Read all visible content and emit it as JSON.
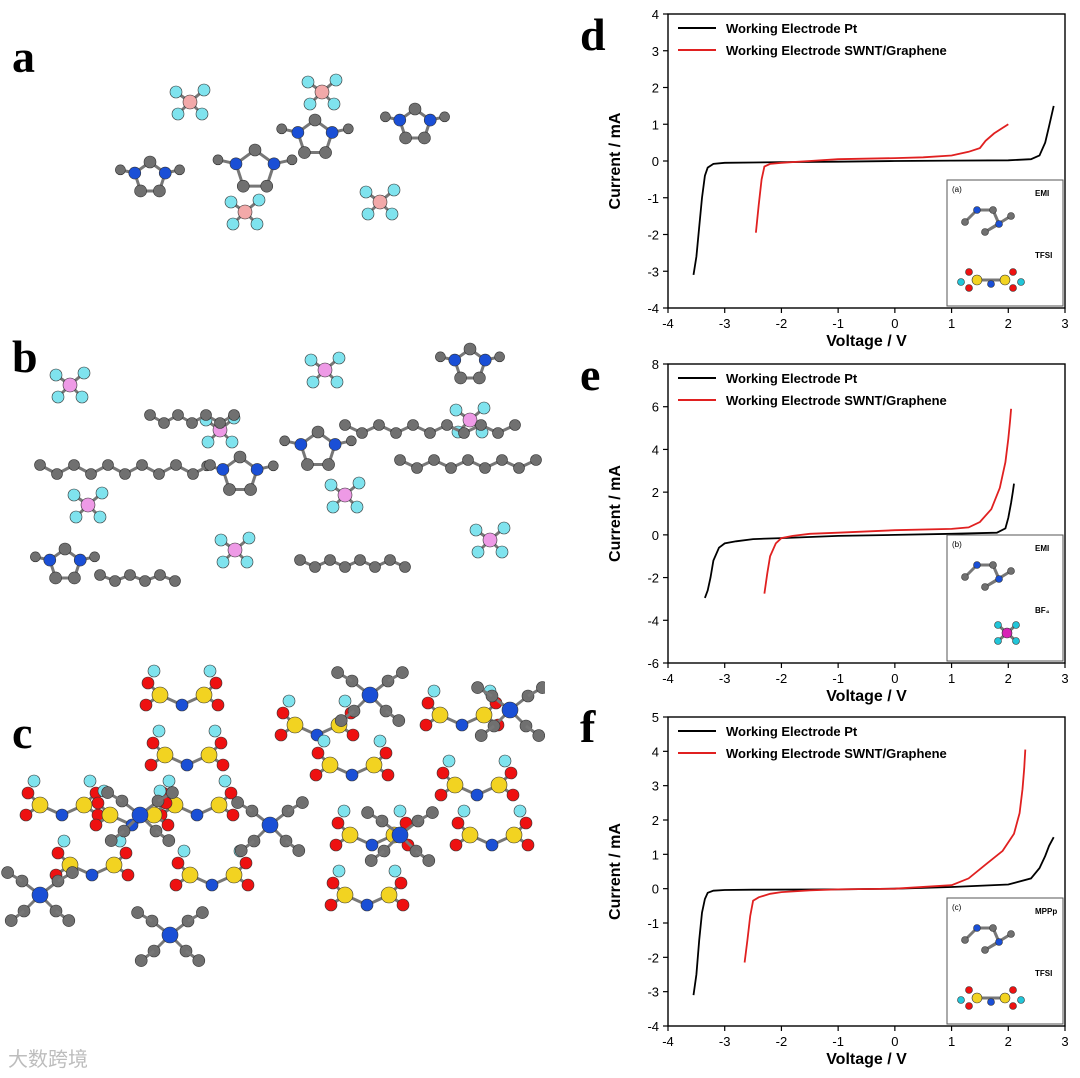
{
  "panels": {
    "a": "a",
    "b": "b",
    "c": "c",
    "d": "d",
    "e": "e",
    "f": "f"
  },
  "watermark": "大数跨境",
  "atom_colors": {
    "carbon": "#707070",
    "nitrogen": "#1a4fd6",
    "boron": "#f2a9a9",
    "phosphorus": "#ee9ae6",
    "fluorine": "#7fe3ee",
    "sulfur": "#f2d321",
    "oxygen": "#ee1111"
  },
  "series_colors": [
    "#000000",
    "#e02020"
  ],
  "chart_data": [
    {
      "type": "line",
      "xlabel": "Voltage / V",
      "ylabel": "Current / mA",
      "xlim": [
        -4,
        3
      ],
      "ylim": [
        -4,
        4
      ],
      "xticks": [
        "-4",
        "-3",
        "-2",
        "-1",
        "0",
        "1",
        "2",
        "3"
      ],
      "yticks": [
        "4",
        "3",
        "2",
        "1",
        "0",
        "-1",
        "-2",
        "-3",
        "-4"
      ],
      "legend_position": "top-left",
      "series": [
        {
          "name": "Working Electrode Pt",
          "x": [
            -3.55,
            -3.5,
            -3.45,
            -3.4,
            -3.35,
            -3.3,
            -3.2,
            -3.0,
            -2.5,
            -2.0,
            -1.0,
            0.0,
            1.0,
            2.0,
            2.4,
            2.55,
            2.65,
            2.72,
            2.8
          ],
          "y": [
            -3.1,
            -2.6,
            -1.8,
            -1.0,
            -0.4,
            -0.18,
            -0.08,
            -0.05,
            -0.04,
            -0.03,
            -0.02,
            0.0,
            0.01,
            0.02,
            0.05,
            0.15,
            0.5,
            0.95,
            1.5
          ]
        },
        {
          "name": "Working Electrode SWNT/Graphene",
          "x": [
            -2.45,
            -2.4,
            -2.35,
            -2.3,
            -2.2,
            -2.0,
            -1.5,
            -1.0,
            0.0,
            0.5,
            1.0,
            1.3,
            1.5,
            1.6,
            1.75,
            1.9,
            2.0
          ],
          "y": [
            -1.95,
            -1.2,
            -0.5,
            -0.15,
            -0.08,
            -0.05,
            0.0,
            0.05,
            0.08,
            0.1,
            0.15,
            0.25,
            0.35,
            0.55,
            0.75,
            0.9,
            1.0
          ]
        }
      ],
      "inset": {
        "labels": [
          "(a)",
          "EMI",
          "TFSI"
        ]
      }
    },
    {
      "type": "line",
      "xlabel": "Voltage / V",
      "ylabel": "Current / mA",
      "xlim": [
        -4,
        3
      ],
      "ylim": [
        -6,
        8
      ],
      "xticks": [
        "-4",
        "-3",
        "-2",
        "-1",
        "0",
        "1",
        "2",
        "3"
      ],
      "yticks": [
        "8",
        "6",
        "4",
        "2",
        "0",
        "-2",
        "-4",
        "-6"
      ],
      "legend_position": "top-left",
      "series": [
        {
          "name": "Working Electrode Pt",
          "x": [
            -3.35,
            -3.3,
            -3.25,
            -3.2,
            -3.1,
            -3.0,
            -2.8,
            -2.5,
            -2.0,
            -1.0,
            0.0,
            1.0,
            1.8,
            1.95,
            2.0,
            2.05,
            2.08,
            2.1
          ],
          "y": [
            -2.95,
            -2.6,
            -2.0,
            -1.2,
            -0.6,
            -0.4,
            -0.3,
            -0.2,
            -0.15,
            -0.05,
            0.0,
            0.05,
            0.1,
            0.3,
            0.8,
            1.5,
            2.0,
            2.4
          ]
        },
        {
          "name": "Working Electrode SWNT/Graphene",
          "x": [
            -2.3,
            -2.25,
            -2.2,
            -2.1,
            -2.0,
            -1.8,
            -1.5,
            -1.0,
            0.0,
            1.0,
            1.3,
            1.5,
            1.7,
            1.85,
            1.95,
            2.0,
            2.03,
            2.05
          ],
          "y": [
            -2.75,
            -1.8,
            -1.0,
            -0.4,
            -0.15,
            -0.05,
            0.05,
            0.1,
            0.22,
            0.28,
            0.35,
            0.6,
            1.2,
            2.2,
            3.4,
            4.5,
            5.3,
            5.9
          ]
        }
      ],
      "inset": {
        "labels": [
          "(b)",
          "EMI",
          "BF₄"
        ]
      }
    },
    {
      "type": "line",
      "xlabel": "Voltage / V",
      "ylabel": "Current / mA",
      "xlim": [
        -4,
        3
      ],
      "ylim": [
        -4,
        5
      ],
      "xticks": [
        "-4",
        "-3",
        "-2",
        "-1",
        "0",
        "1",
        "2",
        "3"
      ],
      "yticks": [
        "5",
        "4",
        "3",
        "2",
        "1",
        "0",
        "-1",
        "-2",
        "-3",
        "-4"
      ],
      "legend_position": "top-left",
      "series": [
        {
          "name": "Working Electrode Pt",
          "x": [
            -3.55,
            -3.5,
            -3.45,
            -3.4,
            -3.35,
            -3.3,
            -3.2,
            -3.0,
            -2.5,
            -1.0,
            0.0,
            1.0,
            2.0,
            2.4,
            2.55,
            2.65,
            2.72,
            2.8
          ],
          "y": [
            -3.1,
            -2.5,
            -1.5,
            -0.7,
            -0.3,
            -0.12,
            -0.06,
            -0.04,
            -0.03,
            -0.02,
            0.0,
            0.05,
            0.12,
            0.3,
            0.6,
            0.95,
            1.25,
            1.5
          ]
        },
        {
          "name": "Working Electrode SWNT/Graphene",
          "x": [
            -2.65,
            -2.6,
            -2.55,
            -2.5,
            -2.4,
            -2.2,
            -2.0,
            -1.5,
            -1.0,
            0.0,
            1.0,
            1.3,
            1.6,
            1.9,
            2.1,
            2.2,
            2.25,
            2.28,
            2.3
          ],
          "y": [
            -2.15,
            -1.5,
            -0.8,
            -0.35,
            -0.25,
            -0.15,
            -0.1,
            -0.05,
            -0.02,
            0.0,
            0.1,
            0.3,
            0.7,
            1.1,
            1.6,
            2.2,
            2.9,
            3.5,
            4.05
          ]
        }
      ],
      "inset": {
        "labels": [
          "(c)",
          "MPPp",
          "TFSI"
        ]
      }
    }
  ]
}
